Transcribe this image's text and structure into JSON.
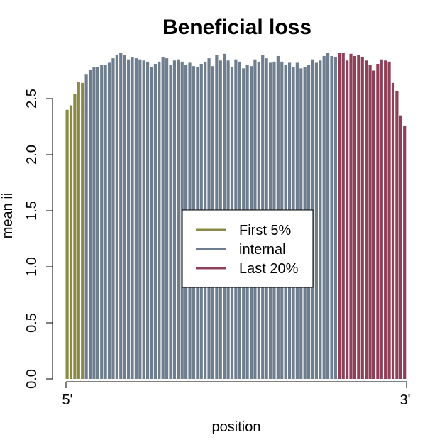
{
  "chart_data": {
    "type": "bar",
    "title": "Beneficial loss",
    "xlabel": "position",
    "ylabel": "mean ii",
    "ylim": [
      0,
      3.0
    ],
    "yticks": [
      "0.0",
      "0.5",
      "1.0",
      "1.5",
      "2.0",
      "2.5"
    ],
    "xticks": [
      "5'",
      "3'"
    ],
    "legend": {
      "placement": "center",
      "entries": [
        {
          "name": "First 5%",
          "color": "#8b8a44"
        },
        {
          "name": "internal",
          "color": "#6f7e8e"
        },
        {
          "name": "Last 20%",
          "color": "#8e4058"
        }
      ]
    },
    "series": [
      {
        "name": "First 5%",
        "color": "#8b8a44",
        "values": [
          2.4,
          2.44,
          2.54,
          2.65,
          2.64
        ]
      },
      {
        "name": "internal",
        "color": "#6f7e8e",
        "values": [
          2.72,
          2.76,
          2.78,
          2.78,
          2.8,
          2.8,
          2.82,
          2.86,
          2.89,
          2.91,
          2.89,
          2.85,
          2.87,
          2.86,
          2.85,
          2.84,
          2.83,
          2.78,
          2.81,
          2.83,
          2.87,
          2.86,
          2.8,
          2.84,
          2.85,
          2.83,
          2.8,
          2.82,
          2.79,
          2.78,
          2.81,
          2.83,
          2.86,
          2.79,
          2.89,
          2.84,
          2.9,
          2.84,
          2.78,
          2.85,
          2.83,
          2.77,
          2.8,
          2.79,
          2.85,
          2.83,
          2.89,
          2.86,
          2.82,
          2.83,
          2.88,
          2.83,
          2.8,
          2.82,
          2.78,
          2.82,
          2.77,
          2.78,
          2.8,
          2.85,
          2.82,
          2.84,
          2.88,
          2.91,
          2.88,
          2.87
        ]
      },
      {
        "name": "Last 20%",
        "color": "#8e4058",
        "values": [
          2.91,
          2.91,
          2.84,
          2.9,
          2.88,
          2.89,
          2.87,
          2.84,
          2.8,
          2.75,
          2.81,
          2.85,
          2.84,
          2.83,
          2.64,
          2.57,
          2.35,
          2.26
        ]
      }
    ]
  }
}
